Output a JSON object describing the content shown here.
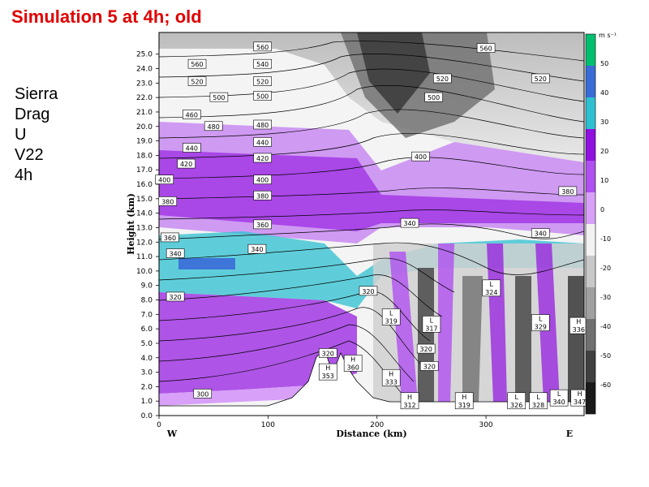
{
  "title": "Simulation 5 at 4h; old",
  "side_labels": [
    "Sierra",
    "Drag",
    "U",
    "V22",
    "4h"
  ],
  "chart_data": {
    "type": "heatmap",
    "xlabel": "Distance (km)",
    "ylabel": "Height (km)",
    "xlim": [
      0,
      390
    ],
    "ylim": [
      0,
      26.5
    ],
    "x_ticks": [
      0,
      100,
      200,
      300
    ],
    "y_ticks": [
      0.0,
      1.0,
      2.0,
      3.0,
      4.0,
      5.0,
      6.0,
      7.0,
      8.0,
      9.0,
      10.0,
      11.0,
      12.0,
      13.0,
      14.0,
      15.0,
      16.0,
      17.0,
      18.0,
      19.0,
      20.0,
      21.0,
      22.0,
      23.0,
      24.0,
      25.0
    ],
    "x_end_labels": [
      "W",
      "E"
    ],
    "colorbar": {
      "units": "m s⁻¹",
      "labels": [
        50,
        40,
        30,
        20,
        10,
        0,
        -10,
        -20,
        -30,
        -40,
        -50,
        -60
      ],
      "colors": [
        "#00c070",
        "#3a6cd8",
        "#2ec0d0",
        "#9010e0",
        "#b050f0",
        "#d8a0f8",
        "#f2f2f2",
        "#c8c8c8",
        "#a0a0a0",
        "#707070",
        "#404040",
        "#1a1a1a"
      ]
    },
    "theta_contour_labels": [
      {
        "x": 40,
        "z": 1.5,
        "label": "300"
      },
      {
        "x": 15,
        "z": 8.2,
        "label": "320"
      },
      {
        "x": 15,
        "z": 11.2,
        "label": "340"
      },
      {
        "x": 90,
        "z": 11.5,
        "label": "340"
      },
      {
        "x": 10,
        "z": 12.3,
        "label": "360"
      },
      {
        "x": 95,
        "z": 13.2,
        "label": "360"
      },
      {
        "x": 95,
        "z": 15.2,
        "label": "380"
      },
      {
        "x": 8,
        "z": 14.8,
        "label": "380"
      },
      {
        "x": 5,
        "z": 16.3,
        "label": "400"
      },
      {
        "x": 95,
        "z": 16.3,
        "label": "400"
      },
      {
        "x": 25,
        "z": 17.4,
        "label": "420"
      },
      {
        "x": 95,
        "z": 17.8,
        "label": "420"
      },
      {
        "x": 30,
        "z": 18.5,
        "label": "440"
      },
      {
        "x": 95,
        "z": 18.9,
        "label": "440"
      },
      {
        "x": 30,
        "z": 20.8,
        "label": "460"
      },
      {
        "x": 50,
        "z": 20.0,
        "label": "480"
      },
      {
        "x": 95,
        "z": 20.1,
        "label": "480"
      },
      {
        "x": 55,
        "z": 22.0,
        "label": "500"
      },
      {
        "x": 95,
        "z": 22.1,
        "label": "500"
      },
      {
        "x": 35,
        "z": 23.1,
        "label": "520"
      },
      {
        "x": 95,
        "z": 23.1,
        "label": "520"
      },
      {
        "x": 35,
        "z": 24.3,
        "label": "560"
      },
      {
        "x": 95,
        "z": 24.3,
        "label": "540"
      },
      {
        "x": 95,
        "z": 25.5,
        "label": "560"
      },
      {
        "x": 300,
        "z": 25.4,
        "label": "560"
      },
      {
        "x": 260,
        "z": 23.3,
        "label": "520"
      },
      {
        "x": 350,
        "z": 23.3,
        "label": "520"
      },
      {
        "x": 252,
        "z": 22.0,
        "label": "500"
      },
      {
        "x": 240,
        "z": 17.9,
        "label": "400"
      },
      {
        "x": 375,
        "z": 15.5,
        "label": "380"
      },
      {
        "x": 230,
        "z": 13.3,
        "label": "340"
      },
      {
        "x": 350,
        "z": 12.6,
        "label": "340"
      },
      {
        "x": 192,
        "z": 8.6,
        "label": "320"
      },
      {
        "x": 155,
        "z": 4.3,
        "label": "320"
      },
      {
        "x": 245,
        "z": 4.6,
        "label": "320"
      },
      {
        "x": 248,
        "z": 3.4,
        "label": "320"
      }
    ],
    "low_high_markers": [
      {
        "x": 213,
        "z": 6.6,
        "type": "L",
        "value": "319"
      },
      {
        "x": 250,
        "z": 6.1,
        "type": "L",
        "value": "317"
      },
      {
        "x": 305,
        "z": 8.6,
        "type": "L",
        "value": "324"
      },
      {
        "x": 350,
        "z": 6.2,
        "type": "L",
        "value": "329"
      },
      {
        "x": 385,
        "z": 6.0,
        "type": "H",
        "value": "336"
      },
      {
        "x": 155,
        "z": 2.8,
        "type": "H",
        "value": "353"
      },
      {
        "x": 178,
        "z": 3.4,
        "type": "H",
        "value": "360"
      },
      {
        "x": 213,
        "z": 2.4,
        "type": "H",
        "value": "333"
      },
      {
        "x": 230,
        "z": 0.8,
        "type": "H",
        "value": "312"
      },
      {
        "x": 280,
        "z": 0.8,
        "type": "H",
        "value": "319"
      },
      {
        "x": 328,
        "z": 0.8,
        "type": "L",
        "value": "326"
      },
      {
        "x": 348,
        "z": 0.8,
        "type": "L",
        "value": "328"
      },
      {
        "x": 367,
        "z": 1.0,
        "type": "L",
        "value": "340"
      },
      {
        "x": 386,
        "z": 1.0,
        "type": "H",
        "value": "347"
      }
    ]
  }
}
